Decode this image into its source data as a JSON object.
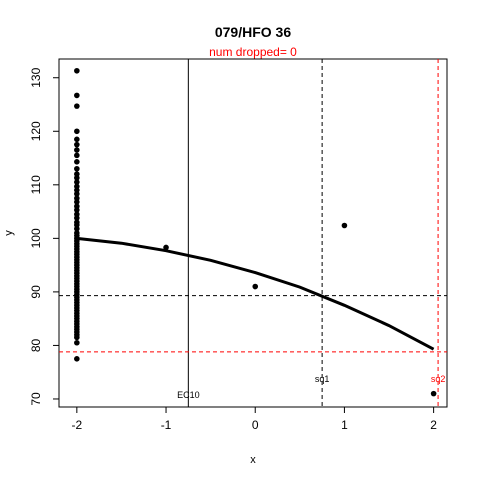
{
  "chart_data": {
    "type": "scatter",
    "title": "079/HFO 36",
    "subtitle": "num dropped= 0",
    "subtitle_color": "#ff0000",
    "xlabel": "x",
    "ylabel": "y",
    "xlim": [
      -2.2,
      2.15
    ],
    "ylim": [
      68.5,
      133.5
    ],
    "xticks": [
      -2,
      -1,
      0,
      1,
      2
    ],
    "xtick_labels": [
      "-2",
      "-1",
      "0",
      "1",
      "2"
    ],
    "yticks": [
      70,
      80,
      90,
      100,
      110,
      120,
      130
    ],
    "ytick_labels": [
      "70",
      "80",
      "90",
      "100",
      "110",
      "120",
      "130"
    ],
    "grid": false,
    "points": {
      "x": [
        -2,
        -2,
        -2,
        -2,
        -2,
        -2,
        -2,
        -2,
        -2,
        -2,
        -2,
        -2,
        -2,
        -2,
        -2,
        -2,
        -2,
        -2,
        -2,
        -2,
        -2,
        -2,
        -2,
        -2,
        -2,
        -2,
        -2,
        -2,
        -2,
        -2,
        -2,
        -2,
        -2,
        -2,
        -2,
        -2,
        -2,
        -2,
        -2,
        -2,
        -2,
        -2,
        -2,
        -2,
        -2,
        -2,
        -2,
        -2,
        -2,
        -2,
        -2,
        -2,
        -2,
        -2,
        -2,
        -2,
        -2,
        -2,
        -2,
        -2,
        -2,
        -2,
        -2,
        -2,
        -2,
        -2,
        -2,
        -1,
        0,
        1,
        2
      ],
      "y": [
        131.3,
        126.7,
        124.7,
        120.0,
        118.5,
        117.5,
        116.5,
        115.5,
        114.3,
        113.0,
        112.0,
        111.3,
        110.5,
        109.7,
        109.0,
        108.3,
        107.5,
        106.8,
        106.0,
        105.3,
        104.5,
        103.8,
        103.0,
        102.5,
        101.8,
        101.0,
        100.5,
        100.0,
        99.5,
        99.0,
        98.5,
        98.0,
        97.5,
        97.0,
        96.5,
        96.0,
        95.5,
        95.0,
        94.5,
        94.0,
        93.5,
        93.0,
        92.5,
        92.0,
        91.5,
        91.0,
        90.5,
        90.0,
        89.5,
        89.0,
        88.5,
        88.0,
        87.5,
        87.0,
        86.5,
        86.0,
        85.5,
        85.0,
        84.5,
        84.0,
        83.5,
        83.0,
        82.5,
        82.0,
        81.5,
        80.5,
        77.5,
        98.3,
        91.0,
        102.4,
        71.0
      ]
    },
    "fit_curve": {
      "x": [
        -2,
        -1.5,
        -1,
        -0.5,
        0,
        0.5,
        1,
        1.5,
        2
      ],
      "y": [
        100.0,
        99.1,
        97.7,
        95.9,
        93.6,
        90.9,
        87.5,
        83.7,
        79.3
      ],
      "color": "#000000"
    },
    "reference_lines": [
      {
        "axis": "x",
        "value": -0.75,
        "style": "solid",
        "color": "#000000",
        "label": "EC10"
      },
      {
        "axis": "x",
        "value": 0.75,
        "style": "dashed",
        "color": "#000000",
        "label": "sq1"
      },
      {
        "axis": "x",
        "value": 2.05,
        "style": "dashed",
        "color": "#ff0000",
        "label": "sq2"
      },
      {
        "axis": "y",
        "value": 89.3,
        "style": "dashed",
        "color": "#000000"
      },
      {
        "axis": "y",
        "value": 78.8,
        "style": "dashed",
        "color": "#ff0000"
      }
    ]
  }
}
